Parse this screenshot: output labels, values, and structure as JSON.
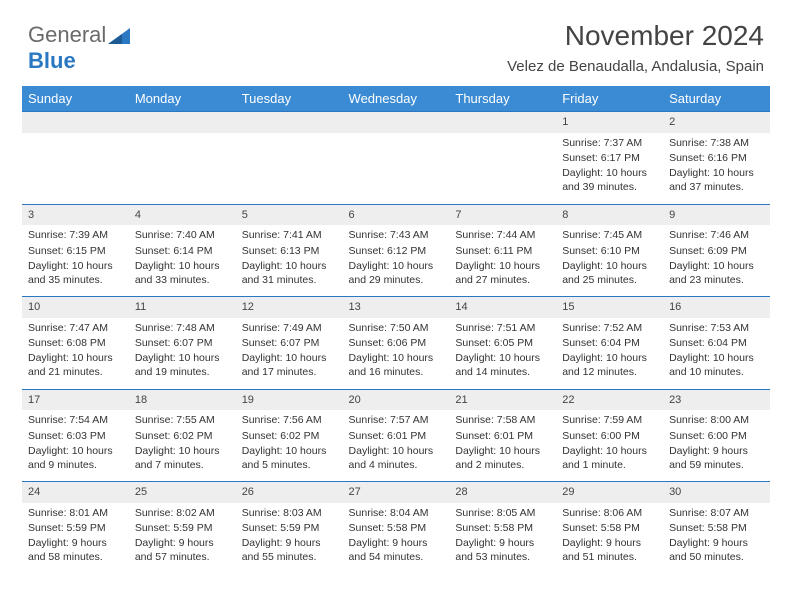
{
  "logo": {
    "part1": "General",
    "part2": "Blue"
  },
  "title": "November 2024",
  "location": "Velez de Benaudalla, Andalusia, Spain",
  "colors": {
    "header_bg": "#3b8bd4",
    "header_text": "#ffffff",
    "daynum_bg": "#eeeeee",
    "row_divider": "#2b78c2",
    "text": "#333333",
    "logo_gray": "#6a6a6a",
    "logo_blue": "#2b78c2"
  },
  "weekdays": [
    "Sunday",
    "Monday",
    "Tuesday",
    "Wednesday",
    "Thursday",
    "Friday",
    "Saturday"
  ],
  "weeks": [
    [
      null,
      null,
      null,
      null,
      null,
      {
        "n": "1",
        "sr": "Sunrise: 7:37 AM",
        "ss": "Sunset: 6:17 PM",
        "dl": "Daylight: 10 hours and 39 minutes."
      },
      {
        "n": "2",
        "sr": "Sunrise: 7:38 AM",
        "ss": "Sunset: 6:16 PM",
        "dl": "Daylight: 10 hours and 37 minutes."
      }
    ],
    [
      {
        "n": "3",
        "sr": "Sunrise: 7:39 AM",
        "ss": "Sunset: 6:15 PM",
        "dl": "Daylight: 10 hours and 35 minutes."
      },
      {
        "n": "4",
        "sr": "Sunrise: 7:40 AM",
        "ss": "Sunset: 6:14 PM",
        "dl": "Daylight: 10 hours and 33 minutes."
      },
      {
        "n": "5",
        "sr": "Sunrise: 7:41 AM",
        "ss": "Sunset: 6:13 PM",
        "dl": "Daylight: 10 hours and 31 minutes."
      },
      {
        "n": "6",
        "sr": "Sunrise: 7:43 AM",
        "ss": "Sunset: 6:12 PM",
        "dl": "Daylight: 10 hours and 29 minutes."
      },
      {
        "n": "7",
        "sr": "Sunrise: 7:44 AM",
        "ss": "Sunset: 6:11 PM",
        "dl": "Daylight: 10 hours and 27 minutes."
      },
      {
        "n": "8",
        "sr": "Sunrise: 7:45 AM",
        "ss": "Sunset: 6:10 PM",
        "dl": "Daylight: 10 hours and 25 minutes."
      },
      {
        "n": "9",
        "sr": "Sunrise: 7:46 AM",
        "ss": "Sunset: 6:09 PM",
        "dl": "Daylight: 10 hours and 23 minutes."
      }
    ],
    [
      {
        "n": "10",
        "sr": "Sunrise: 7:47 AM",
        "ss": "Sunset: 6:08 PM",
        "dl": "Daylight: 10 hours and 21 minutes."
      },
      {
        "n": "11",
        "sr": "Sunrise: 7:48 AM",
        "ss": "Sunset: 6:07 PM",
        "dl": "Daylight: 10 hours and 19 minutes."
      },
      {
        "n": "12",
        "sr": "Sunrise: 7:49 AM",
        "ss": "Sunset: 6:07 PM",
        "dl": "Daylight: 10 hours and 17 minutes."
      },
      {
        "n": "13",
        "sr": "Sunrise: 7:50 AM",
        "ss": "Sunset: 6:06 PM",
        "dl": "Daylight: 10 hours and 16 minutes."
      },
      {
        "n": "14",
        "sr": "Sunrise: 7:51 AM",
        "ss": "Sunset: 6:05 PM",
        "dl": "Daylight: 10 hours and 14 minutes."
      },
      {
        "n": "15",
        "sr": "Sunrise: 7:52 AM",
        "ss": "Sunset: 6:04 PM",
        "dl": "Daylight: 10 hours and 12 minutes."
      },
      {
        "n": "16",
        "sr": "Sunrise: 7:53 AM",
        "ss": "Sunset: 6:04 PM",
        "dl": "Daylight: 10 hours and 10 minutes."
      }
    ],
    [
      {
        "n": "17",
        "sr": "Sunrise: 7:54 AM",
        "ss": "Sunset: 6:03 PM",
        "dl": "Daylight: 10 hours and 9 minutes."
      },
      {
        "n": "18",
        "sr": "Sunrise: 7:55 AM",
        "ss": "Sunset: 6:02 PM",
        "dl": "Daylight: 10 hours and 7 minutes."
      },
      {
        "n": "19",
        "sr": "Sunrise: 7:56 AM",
        "ss": "Sunset: 6:02 PM",
        "dl": "Daylight: 10 hours and 5 minutes."
      },
      {
        "n": "20",
        "sr": "Sunrise: 7:57 AM",
        "ss": "Sunset: 6:01 PM",
        "dl": "Daylight: 10 hours and 4 minutes."
      },
      {
        "n": "21",
        "sr": "Sunrise: 7:58 AM",
        "ss": "Sunset: 6:01 PM",
        "dl": "Daylight: 10 hours and 2 minutes."
      },
      {
        "n": "22",
        "sr": "Sunrise: 7:59 AM",
        "ss": "Sunset: 6:00 PM",
        "dl": "Daylight: 10 hours and 1 minute."
      },
      {
        "n": "23",
        "sr": "Sunrise: 8:00 AM",
        "ss": "Sunset: 6:00 PM",
        "dl": "Daylight: 9 hours and 59 minutes."
      }
    ],
    [
      {
        "n": "24",
        "sr": "Sunrise: 8:01 AM",
        "ss": "Sunset: 5:59 PM",
        "dl": "Daylight: 9 hours and 58 minutes."
      },
      {
        "n": "25",
        "sr": "Sunrise: 8:02 AM",
        "ss": "Sunset: 5:59 PM",
        "dl": "Daylight: 9 hours and 57 minutes."
      },
      {
        "n": "26",
        "sr": "Sunrise: 8:03 AM",
        "ss": "Sunset: 5:59 PM",
        "dl": "Daylight: 9 hours and 55 minutes."
      },
      {
        "n": "27",
        "sr": "Sunrise: 8:04 AM",
        "ss": "Sunset: 5:58 PM",
        "dl": "Daylight: 9 hours and 54 minutes."
      },
      {
        "n": "28",
        "sr": "Sunrise: 8:05 AM",
        "ss": "Sunset: 5:58 PM",
        "dl": "Daylight: 9 hours and 53 minutes."
      },
      {
        "n": "29",
        "sr": "Sunrise: 8:06 AM",
        "ss": "Sunset: 5:58 PM",
        "dl": "Daylight: 9 hours and 51 minutes."
      },
      {
        "n": "30",
        "sr": "Sunrise: 8:07 AM",
        "ss": "Sunset: 5:58 PM",
        "dl": "Daylight: 9 hours and 50 minutes."
      }
    ]
  ]
}
